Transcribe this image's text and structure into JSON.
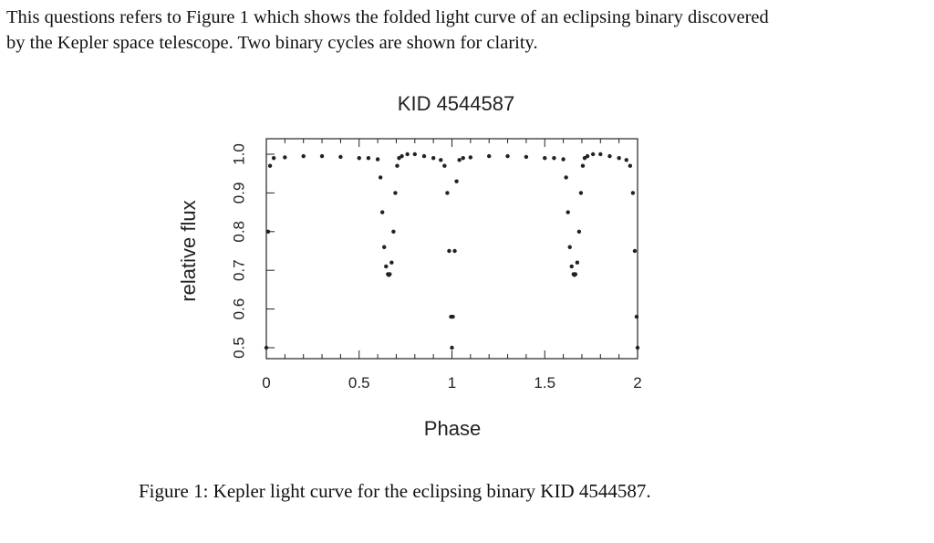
{
  "text": {
    "line1": "This questions refers to Figure 1 which shows the folded light curve of an eclipsing binary discovered",
    "line2": "by the Kepler space telescope. Two binary cycles are shown for clarity.",
    "caption": "Figure 1: Kepler light curve for the eclipsing binary KID 4544587."
  },
  "chart_data": {
    "type": "scatter",
    "title": "KID 4544587",
    "xlabel": "Phase",
    "ylabel": "relative flux",
    "xlim": [
      0,
      2
    ],
    "ylim": [
      0.5,
      1.0
    ],
    "xticks": [
      "0",
      "0.5",
      "1",
      "1.5",
      "2"
    ],
    "xtick_values": [
      0,
      0.5,
      1,
      1.5,
      2
    ],
    "yticks": [
      "0.5",
      "0.6",
      "0.7",
      "0.8",
      "0.9",
      "1.0"
    ],
    "ytick_values": [
      0.5,
      0.6,
      0.7,
      0.8,
      0.9,
      1.0
    ],
    "grid": false,
    "legend": "none",
    "marker_color": "#222222",
    "series": [
      {
        "x": [
          0.0,
          0.01,
          0.02,
          0.04,
          0.1,
          0.2,
          0.3,
          0.4,
          0.5,
          0.55,
          0.6,
          0.615,
          0.625,
          0.635,
          0.645,
          0.655,
          0.66,
          0.665,
          0.675,
          0.685,
          0.695,
          0.705,
          0.715,
          0.73,
          0.76,
          0.8,
          0.85,
          0.9,
          0.94,
          0.96,
          0.975,
          0.985,
          0.995,
          1.0,
          1.005,
          1.015,
          1.025,
          1.04,
          1.06,
          1.1,
          1.2,
          1.3,
          1.4,
          1.5,
          1.55,
          1.6,
          1.615,
          1.625,
          1.635,
          1.645,
          1.655,
          1.66,
          1.665,
          1.675,
          1.685,
          1.695,
          1.705,
          1.715,
          1.73,
          1.76,
          1.8,
          1.85,
          1.9,
          1.94,
          1.96,
          1.975,
          1.985,
          1.995,
          2.0
        ],
        "y": [
          0.5,
          0.8,
          0.97,
          0.99,
          0.992,
          0.995,
          0.995,
          0.993,
          0.99,
          0.99,
          0.987,
          0.94,
          0.85,
          0.76,
          0.71,
          0.69,
          0.688,
          0.69,
          0.72,
          0.8,
          0.9,
          0.97,
          0.99,
          0.995,
          1.0,
          1.0,
          0.995,
          0.99,
          0.985,
          0.97,
          0.9,
          0.75,
          0.58,
          0.5,
          0.58,
          0.75,
          0.93,
          0.985,
          0.99,
          0.992,
          0.995,
          0.995,
          0.993,
          0.99,
          0.99,
          0.987,
          0.94,
          0.85,
          0.76,
          0.71,
          0.69,
          0.688,
          0.69,
          0.72,
          0.8,
          0.9,
          0.97,
          0.99,
          0.995,
          1.0,
          1.0,
          0.995,
          0.99,
          0.985,
          0.97,
          0.9,
          0.75,
          0.58,
          0.5
        ]
      }
    ]
  }
}
